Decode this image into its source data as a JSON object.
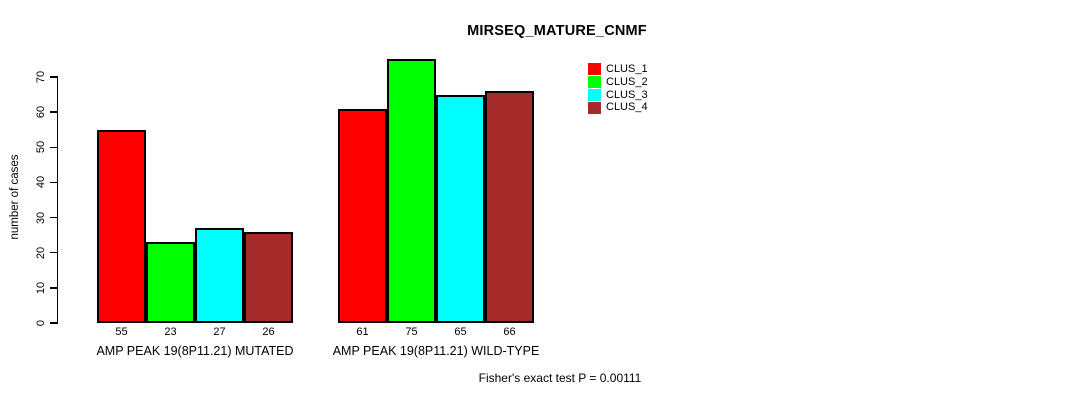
{
  "chart_data": {
    "type": "bar",
    "title": "MIRSEQ_MATURE_CNMF",
    "xlabel": "",
    "ylabel": "number of cases",
    "categories": [
      "AMP PEAK 19(8P11.21) MUTATED",
      "AMP PEAK 19(8P11.21) WILD-TYPE"
    ],
    "series": [
      {
        "name": "CLUS_1",
        "color": "#ff0000",
        "values": [
          55,
          61
        ]
      },
      {
        "name": "CLUS_2",
        "color": "#00ff00",
        "values": [
          23,
          75
        ]
      },
      {
        "name": "CLUS_3",
        "color": "#00ffff",
        "values": [
          27,
          65
        ]
      },
      {
        "name": "CLUS_4",
        "color": "#a52a2a",
        "values": [
          26,
          66
        ]
      }
    ],
    "bar_value_labels_shown": true,
    "ylim": [
      0,
      70
    ],
    "yticks": [
      0,
      10,
      20,
      30,
      40,
      50,
      60,
      70
    ],
    "grid": false,
    "legend_position": "top-right",
    "bar_border_color": "#000000",
    "annotation": "Fisher's exact test P = 0.00111"
  }
}
